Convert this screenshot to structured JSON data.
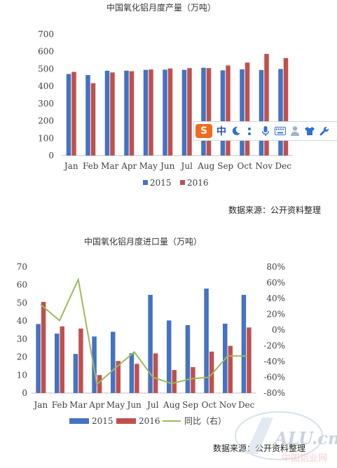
{
  "chart_data": [
    {
      "type": "bar",
      "title": "中国氧化铝月度产量（万吨）",
      "categories": [
        "Jan",
        "Feb",
        "Mar",
        "Apr",
        "May",
        "Jun",
        "Jul",
        "Aug",
        "Sep",
        "Oct",
        "Nov",
        "Dec"
      ],
      "yticks": [
        "0",
        "100",
        "200",
        "300",
        "400",
        "500",
        "600",
        "700"
      ],
      "ylim": [
        0,
        700
      ],
      "grid": false,
      "legend": "bottom",
      "series": [
        {
          "name": "2015",
          "color": "#4472c4",
          "values": [
            471,
            465,
            490,
            490,
            495,
            496,
            495,
            507,
            492,
            498,
            494,
            500
          ]
        },
        {
          "name": "2016",
          "color": "#c0504d",
          "values": [
            483,
            418,
            480,
            487,
            497,
            503,
            505,
            505,
            520,
            537,
            587,
            563
          ]
        }
      ],
      "source": "数据来源：公开资料整理"
    },
    {
      "type": "bar+line",
      "title": "中国氧化铝月度进口量（万吨）",
      "categories": [
        "Jan",
        "Feb",
        "Mar",
        "Apr",
        "May",
        "Jun",
        "Jul",
        "Aug",
        "Sep",
        "Oct",
        "Nov",
        "Dec"
      ],
      "yticks_left": [
        "0",
        "10",
        "20",
        "30",
        "40",
        "50",
        "60",
        "70"
      ],
      "ylim_left": [
        0,
        70
      ],
      "yticks_right": [
        "-80%",
        "-60%",
        "-40%",
        "-20%",
        "0%",
        "20%",
        "40%",
        "60%",
        "80%"
      ],
      "ylim_right": [
        -80,
        80
      ],
      "grid": false,
      "legend": "bottom",
      "series": [
        {
          "name": "2015",
          "type": "bar",
          "axis": "left",
          "color": "#4472c4",
          "values": [
            38.3,
            33,
            21.7,
            31.4,
            34,
            22.1,
            54.5,
            40.3,
            37.7,
            58,
            38.5,
            54.5
          ]
        },
        {
          "name": "2016",
          "type": "bar",
          "axis": "left",
          "color": "#c0504d",
          "values": [
            50.6,
            37,
            35.8,
            10,
            17.8,
            16.2,
            22,
            12.8,
            14.4,
            23,
            26.2,
            36.4
          ]
        },
        {
          "name": "同比（右）",
          "type": "line",
          "axis": "right",
          "color": "#9bbb59",
          "values": [
            32,
            12,
            64,
            -69,
            -48,
            -28,
            -60,
            -68,
            -62,
            -60,
            -33,
            -33
          ]
        }
      ],
      "source": "数据来源：公开资料整理"
    }
  ],
  "ime_toolbar": {
    "logo": "S",
    "mode_label": "中",
    "icons": [
      "moon-icon",
      "punctuation-icon",
      "microphone-icon",
      "keyboard-icon",
      "user-icon",
      "skin-icon",
      "wrench-icon"
    ]
  },
  "watermark": {
    "logo_text": "ALU.cn",
    "subtitle": "中国铝业网"
  }
}
